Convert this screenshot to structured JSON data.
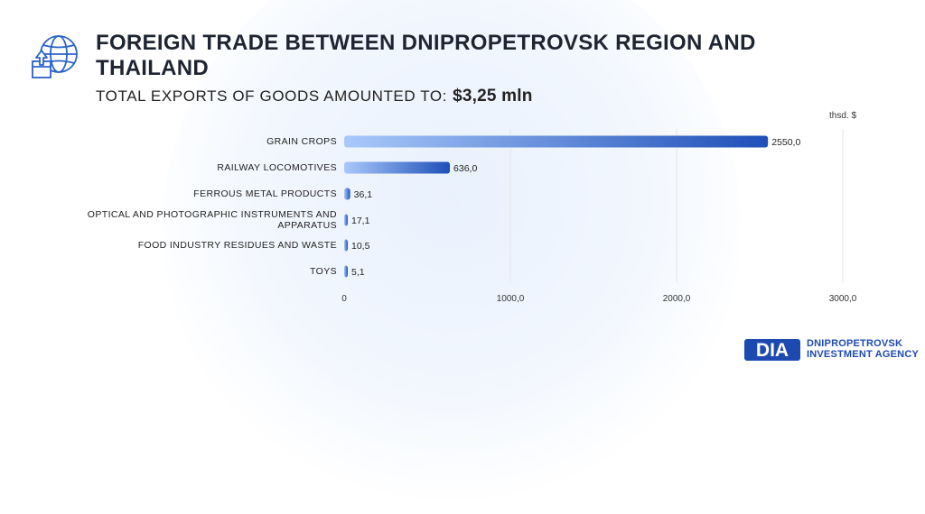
{
  "header": {
    "title": "FOREIGN TRADE BETWEEN DNIPROPETROVSK REGION AND THAILAND",
    "subtitle_prefix": "TOTAL EXPORTS OF GOODS AMOUNTED TO:",
    "subtitle_amount": "$3,25 mln",
    "icon": "globe-export-icon"
  },
  "colors": {
    "bar_start": "#a9c9fb",
    "bar_end": "#1e4fb8",
    "grid": "#e3e6ec"
  },
  "chart_data": {
    "type": "bar",
    "orientation": "horizontal",
    "unit_label": "thsd. $",
    "categories": [
      "GRAIN CROPS",
      "RAILWAY LOCOMOTIVES",
      "FERROUS METAL PRODUCTS",
      "OPTICAL AND PHOTOGRAPHIC INSTRUMENTS AND APPARATUS",
      "FOOD INDUSTRY RESIDUES AND WASTE",
      "TOYS"
    ],
    "values": [
      2550.0,
      636.0,
      36.1,
      17.1,
      10.5,
      5.1
    ],
    "value_labels": [
      "2550,0",
      "636,0",
      "36,1",
      "17,1",
      "10,5",
      "5,1"
    ],
    "xlim": [
      0,
      3000
    ],
    "x_ticks": [
      0,
      1000,
      2000,
      3000
    ],
    "x_tick_labels": [
      "0",
      "1000,0",
      "2000,0",
      "3000,0"
    ],
    "grid": true
  },
  "logo": {
    "mark": "DIA",
    "line1": "DNIPROPETROVSK",
    "line2": "INVESTMENT AGENCY"
  }
}
